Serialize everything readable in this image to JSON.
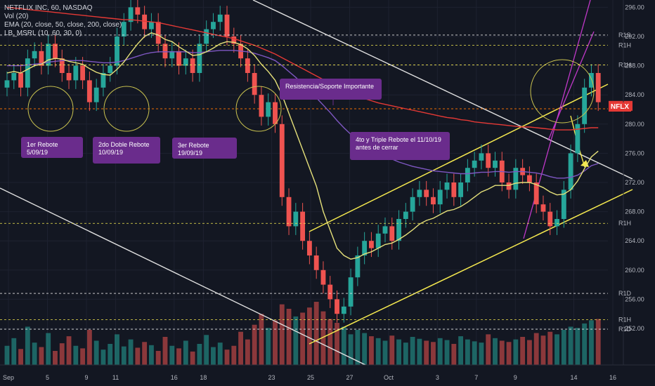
{
  "header": {
    "symbol": "NETFLIX INC, 60, NASDAQ",
    "indicators": [
      "Vol (20)",
      "EMA (20, close, 50, close, 200, close)",
      "LB_MSRL (10, 60, 30, 0)"
    ]
  },
  "annotations": [
    {
      "id": "n1",
      "text": "1er Rebote 5/09/19"
    },
    {
      "id": "n2",
      "text": "2do Doble Rebote 10/09/19"
    },
    {
      "id": "n3",
      "text": "3er Rebote 19/09/19"
    },
    {
      "id": "n4",
      "text": "Resistencia/Soporte  Importante"
    },
    {
      "id": "n5",
      "text": "4to y Triple Rebote el 11/10/19 antes de cerrar"
    }
  ],
  "price_tags": {
    "symbol": "NFLX",
    "levels": [
      {
        "label": "R1S",
        "price": 292.2
      },
      {
        "label": "R1H",
        "price": 290.8
      },
      {
        "label": "R1H",
        "price": 288.1
      },
      {
        "label": "R1H",
        "price": 266.4
      },
      {
        "label": "R1D",
        "price": 256.8
      },
      {
        "label": "R1H",
        "price": 253.2
      },
      {
        "label": "R1D",
        "price": 251.9
      }
    ]
  },
  "chart_data": {
    "type": "candlestick",
    "title": "NETFLIX INC, 60, NASDAQ",
    "ylim": [
      247,
      297
    ],
    "y_ticks": [
      252,
      256,
      260,
      264,
      268,
      272,
      276,
      280,
      284,
      288,
      292,
      296
    ],
    "x_ticks": [
      "Sep",
      "5",
      "9",
      "11",
      "16",
      "18",
      "23",
      "25",
      "27",
      "Oct",
      "3",
      "7",
      "9",
      "14",
      "16"
    ],
    "last_price": 282.5,
    "current_price_color": "#e53935",
    "up_color": "#26a69a",
    "down_color": "#ef5350",
    "close": [
      286,
      287,
      285,
      289,
      290,
      288,
      291,
      289,
      287,
      286,
      288,
      286,
      283,
      285,
      287,
      288,
      292,
      294,
      296,
      295,
      293,
      294,
      291,
      289,
      290,
      288,
      289,
      287,
      291,
      293,
      294,
      295,
      292,
      291,
      289,
      287,
      284,
      281,
      283,
      280,
      270,
      266,
      268,
      264,
      262,
      260,
      258,
      256,
      254,
      255,
      259,
      262,
      264,
      263,
      265,
      266,
      264,
      267,
      268,
      270,
      271,
      270,
      269,
      271,
      272,
      270,
      272,
      274,
      275,
      276,
      274,
      275,
      272,
      271,
      274,
      273,
      272,
      269,
      268,
      266,
      267,
      271,
      276,
      280,
      285,
      287,
      283
    ],
    "ema_20": [
      287,
      287.2,
      287,
      287.5,
      288,
      288.2,
      288.8,
      289,
      288.9,
      288.6,
      288.4,
      288.2,
      287.6,
      287.1,
      286.8,
      286.7,
      287.5,
      288.5,
      289.8,
      291,
      292,
      292.5,
      292.2,
      291.6,
      291.3,
      290.6,
      290,
      289.4,
      289.5,
      289.9,
      290.4,
      291,
      291.3,
      291.2,
      290.9,
      290.3,
      289.4,
      288.2,
      287.2,
      286,
      284,
      281.5,
      279,
      276.5,
      274,
      271.5,
      268,
      265.5,
      263,
      262,
      261.5,
      261.7,
      262.2,
      262.5,
      263,
      263.5,
      263.7,
      264.2,
      264.8,
      265.5,
      266.3,
      266.8,
      267.1,
      267.6,
      268.1,
      268.3,
      268.7,
      269.3,
      270,
      270.7,
      271.1,
      271.6,
      271.6,
      271.6,
      271.9,
      272,
      272,
      271.7,
      271.3,
      270.7,
      270.3,
      270.4,
      271,
      272.2,
      273.9,
      275.5,
      276.3
    ],
    "ema_50": [
      288,
      288,
      288,
      288.1,
      288.2,
      288.3,
      288.5,
      288.6,
      288.7,
      288.7,
      288.7,
      288.7,
      288.6,
      288.5,
      288.4,
      288.4,
      288.5,
      288.7,
      289,
      289.3,
      289.6,
      289.8,
      289.9,
      289.9,
      289.9,
      289.9,
      289.9,
      289.8,
      289.8,
      289.9,
      290,
      290.1,
      290.1,
      290.1,
      290,
      289.9,
      289.7,
      289.4,
      289.1,
      288.7,
      288,
      287.2,
      286.4,
      285.5,
      284.6,
      283.6,
      282.6,
      281.6,
      280.5,
      279.5,
      278.6,
      277.9,
      277.3,
      276.7,
      276.2,
      275.7,
      275.2,
      274.8,
      274.5,
      274.2,
      274,
      273.8,
      273.6,
      273.5,
      273.4,
      273.3,
      273.2,
      273.2,
      273.3,
      273.4,
      273.4,
      273.5,
      273.5,
      273.4,
      273.5,
      273.5,
      273.4,
      273.3,
      273.1,
      272.8,
      272.6,
      272.6,
      272.7,
      273,
      273.6,
      274.3,
      274.6
    ],
    "ema_200": [
      296,
      295.9,
      295.8,
      295.7,
      295.6,
      295.5,
      295.4,
      295.3,
      295.2,
      295.1,
      295,
      294.9,
      294.8,
      294.7,
      294.6,
      294.5,
      294.4,
      294.3,
      294.3,
      294.2,
      294.1,
      294,
      293.9,
      293.7,
      293.5,
      293.3,
      293.1,
      292.9,
      292.7,
      292.5,
      292.3,
      292.1,
      291.9,
      291.7,
      291.4,
      291.1,
      290.8,
      290.4,
      290,
      289.6,
      289.1,
      288.6,
      288.1,
      287.6,
      287.1,
      286.6,
      286.1,
      285.6,
      285.1,
      284.6,
      284.2,
      283.8,
      283.5,
      283.2,
      282.9,
      282.7,
      282.5,
      282.3,
      282.1,
      281.9,
      281.7,
      281.5,
      281.3,
      281.1,
      280.9,
      280.8,
      280.6,
      280.5,
      280.3,
      280.2,
      280.1,
      280,
      279.9,
      279.8,
      279.7,
      279.6,
      279.6,
      279.5,
      279.4,
      279.3,
      279.2,
      279.2,
      279.2,
      279.3,
      279.4,
      279.5,
      279.5
    ],
    "volume": [
      30,
      42,
      25,
      60,
      35,
      28,
      50,
      22,
      34,
      45,
      30,
      26,
      55,
      38,
      24,
      33,
      48,
      29,
      40,
      27,
      36,
      31,
      22,
      44,
      30,
      26,
      38,
      21,
      33,
      47,
      28,
      35,
      24,
      30,
      52,
      40,
      63,
      80,
      58,
      70,
      95,
      88,
      76,
      82,
      90,
      99,
      84,
      72,
      66,
      60,
      48,
      55,
      50,
      45,
      42,
      38,
      46,
      40,
      35,
      44,
      41,
      38,
      36,
      42,
      39,
      33,
      45,
      40,
      37,
      35,
      48,
      42,
      38,
      36,
      40,
      44,
      39,
      50,
      46,
      52,
      48,
      55,
      60,
      58,
      65,
      70,
      72
    ],
    "xlabel": "",
    "ylabel": ""
  }
}
